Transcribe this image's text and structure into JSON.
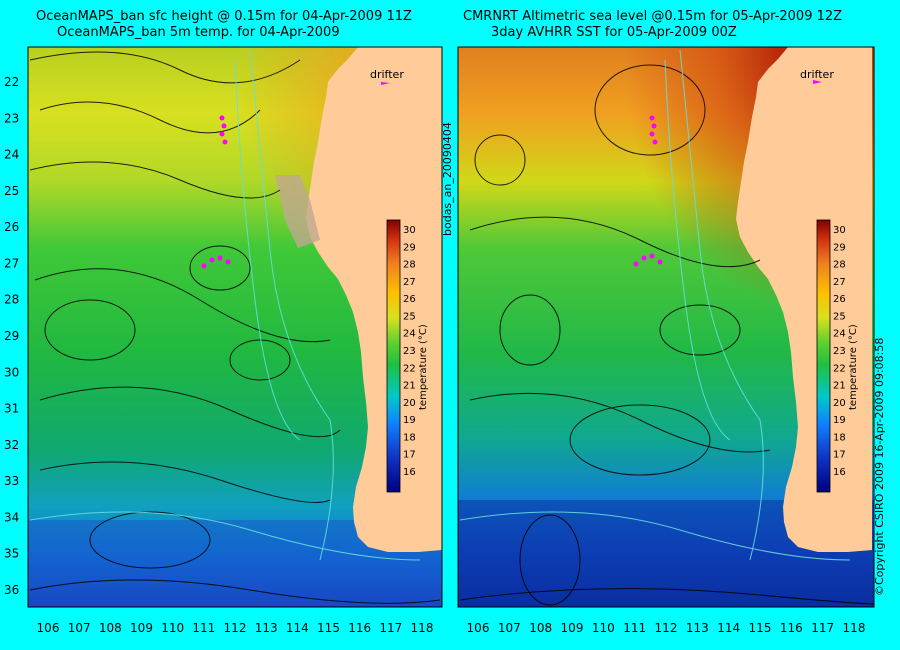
{
  "left": {
    "title1": "OceanMAPS_ban sfc height @ 0.15m for 04-Apr-2009 11Z",
    "title2": "OceanMAPS_ban 5m temp. for 04-Apr-2009",
    "drifter_label": "drifter",
    "colorbar_label": "temperature (°C)"
  },
  "right": {
    "title1": "CMRNRT Altimetric sea level  @0.15m  for 05-Apr-2009 12Z",
    "title2": "3day AVHRR SST for 05-Apr-2009 00Z",
    "drifter_label": "drifter",
    "colorbar_label": "temperature (°C)"
  },
  "side_label": "bodas_an_20090404",
  "copyright": "©Copyright CSIRO 2009    16-Apr-2009 09:08:58",
  "axes": {
    "lon_ticks": [
      "106",
      "107",
      "108",
      "109",
      "110",
      "111",
      "112",
      "113",
      "114",
      "115",
      "116",
      "117",
      "118"
    ],
    "lat_ticks": [
      "22",
      "23",
      "24",
      "25",
      "26",
      "27",
      "28",
      "29",
      "30",
      "31",
      "32",
      "33",
      "34",
      "35",
      "36"
    ]
  },
  "colorbar_ticks": [
    "30",
    "29",
    "28",
    "27",
    "26",
    "25",
    "24",
    "23",
    "22",
    "21",
    "20",
    "19",
    "18",
    "17",
    "16"
  ],
  "colors": {
    "background": "#00ffff",
    "land": "#ffcc99",
    "drifter": "#ff00ff",
    "contour": "#000000",
    "bathymetry": "#66dddd"
  }
}
